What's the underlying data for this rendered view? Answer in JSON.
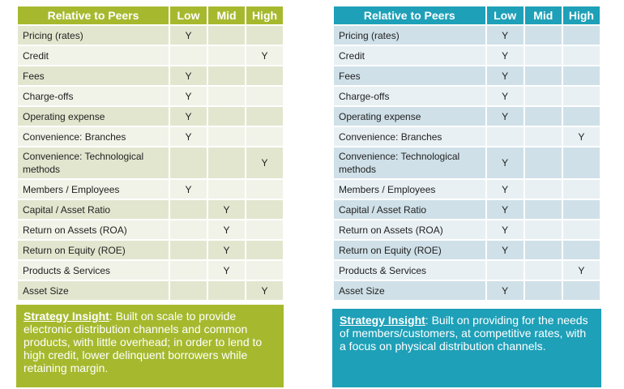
{
  "columns": [
    "Relative to Peers",
    "Low",
    "Mid",
    "High"
  ],
  "left_table": {
    "accent": "#a6b92e",
    "rows": [
      {
        "label": "Pricing (rates)",
        "low": "Y",
        "mid": "",
        "high": ""
      },
      {
        "label": "Credit",
        "low": "",
        "mid": "",
        "high": "Y"
      },
      {
        "label": "Fees",
        "low": "Y",
        "mid": "",
        "high": ""
      },
      {
        "label": "Charge-offs",
        "low": "Y",
        "mid": "",
        "high": ""
      },
      {
        "label": "Operating expense",
        "low": "Y",
        "mid": "",
        "high": ""
      },
      {
        "label": "Convenience: Branches",
        "low": "Y",
        "mid": "",
        "high": ""
      },
      {
        "label": "Convenience: Technological methods",
        "low": "",
        "mid": "",
        "high": "Y"
      },
      {
        "label": "Members / Employees",
        "low": "Y",
        "mid": "",
        "high": ""
      },
      {
        "label": "Capital / Asset Ratio",
        "low": "",
        "mid": "Y",
        "high": ""
      },
      {
        "label": "Return on Assets (ROA)",
        "low": "",
        "mid": "Y",
        "high": ""
      },
      {
        "label": "Return on Equity (ROE)",
        "low": "",
        "mid": "Y",
        "high": ""
      },
      {
        "label": "Products & Services",
        "low": "",
        "mid": "Y",
        "high": ""
      },
      {
        "label": "Asset Size",
        "low": "",
        "mid": "",
        "high": "Y"
      }
    ]
  },
  "right_table": {
    "accent": "#1ea0b8",
    "rows": [
      {
        "label": "Pricing (rates)",
        "low": "Y",
        "mid": "",
        "high": ""
      },
      {
        "label": "Credit",
        "low": "Y",
        "mid": "",
        "high": ""
      },
      {
        "label": "Fees",
        "low": "Y",
        "mid": "",
        "high": ""
      },
      {
        "label": "Charge-offs",
        "low": "Y",
        "mid": "",
        "high": ""
      },
      {
        "label": "Operating expense",
        "low": "Y",
        "mid": "",
        "high": ""
      },
      {
        "label": "Convenience: Branches",
        "low": "",
        "mid": "",
        "high": "Y"
      },
      {
        "label": "Convenience: Technological methods",
        "low": "Y",
        "mid": "",
        "high": ""
      },
      {
        "label": "Members / Employees",
        "low": "Y",
        "mid": "",
        "high": ""
      },
      {
        "label": "Capital / Asset Ratio",
        "low": "Y",
        "mid": "",
        "high": ""
      },
      {
        "label": "Return on Assets (ROA)",
        "low": "Y",
        "mid": "",
        "high": ""
      },
      {
        "label": "Return on Equity (ROE)",
        "low": "Y",
        "mid": "",
        "high": ""
      },
      {
        "label": "Products & Services",
        "low": "",
        "mid": "",
        "high": "Y"
      },
      {
        "label": "Asset Size",
        "low": "Y",
        "mid": "",
        "high": ""
      }
    ]
  },
  "left_insight": {
    "lead": "Strategy Insight",
    "text": ": Built on scale to provide electronic distribution channels and common products, with little overhead; in order to lend to high credit, lower delinquent borrowers while retaining margin."
  },
  "right_insight": {
    "lead": "Strategy Insight",
    "text": ": Built on providing for the needs of members/customers, at competitive rates, with a focus on physical distribution channels."
  }
}
